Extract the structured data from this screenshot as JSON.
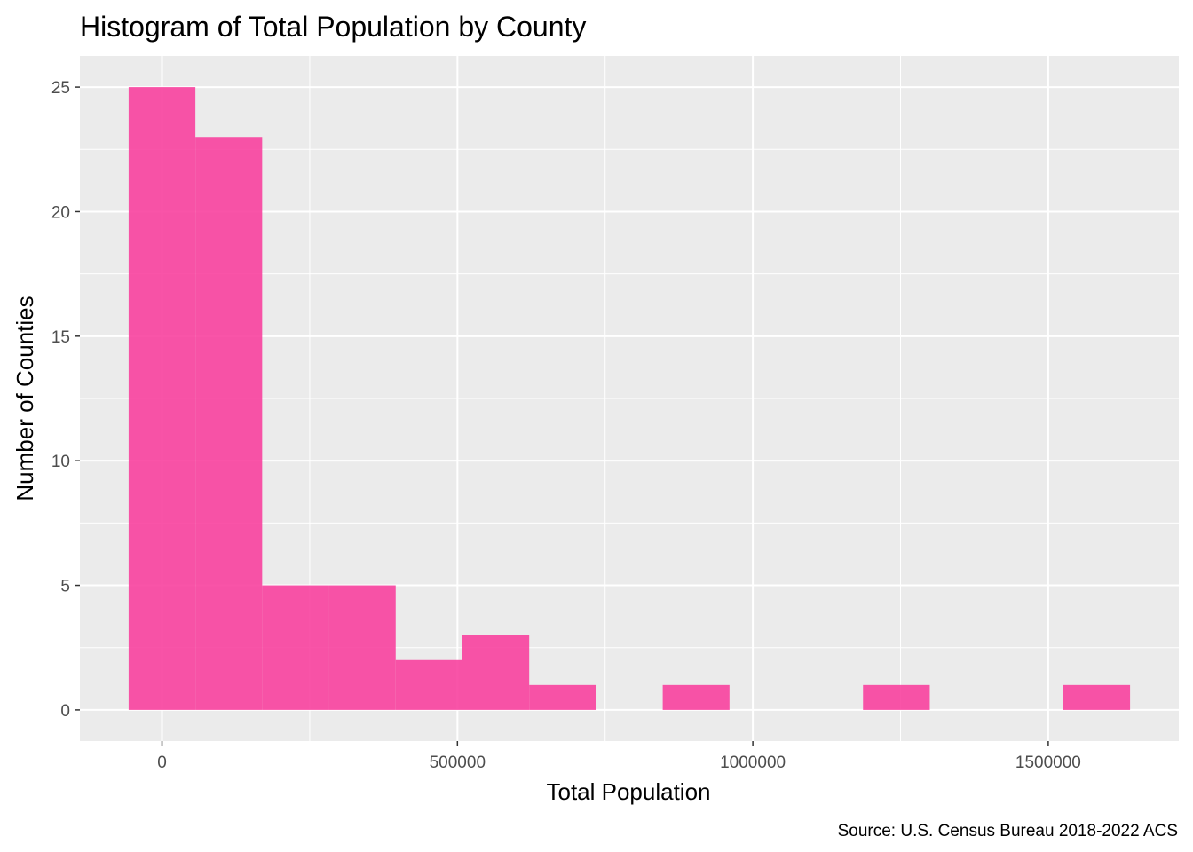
{
  "chart_data": {
    "type": "bar",
    "title": "Histogram of Total Population by County",
    "xlabel": "Total Population",
    "ylabel": "Number of Counties",
    "caption": "Source: U.S. Census Bureau 2018-2022 ACS",
    "bin_width": 113000,
    "bins": [
      {
        "x0": -56500,
        "x1": 56500,
        "count": 25
      },
      {
        "x0": 56500,
        "x1": 169500,
        "count": 23
      },
      {
        "x0": 169500,
        "x1": 282500,
        "count": 5
      },
      {
        "x0": 282500,
        "x1": 395500,
        "count": 5
      },
      {
        "x0": 395500,
        "x1": 508500,
        "count": 2
      },
      {
        "x0": 508500,
        "x1": 621500,
        "count": 3
      },
      {
        "x0": 621500,
        "x1": 734500,
        "count": 1
      },
      {
        "x0": 734500,
        "x1": 847500,
        "count": 0
      },
      {
        "x0": 847500,
        "x1": 960500,
        "count": 1
      },
      {
        "x0": 960500,
        "x1": 1073500,
        "count": 0
      },
      {
        "x0": 1073500,
        "x1": 1186500,
        "count": 0
      },
      {
        "x0": 1186500,
        "x1": 1299500,
        "count": 1
      },
      {
        "x0": 1299500,
        "x1": 1412500,
        "count": 0
      },
      {
        "x0": 1412500,
        "x1": 1525500,
        "count": 0
      },
      {
        "x0": 1525500,
        "x1": 1638500,
        "count": 1
      }
    ],
    "xlim": [
      -139000,
      1721000
    ],
    "ylim": [
      -1.25,
      26.25
    ],
    "x_ticks": [
      0,
      500000,
      1000000,
      1500000
    ],
    "x_tick_labels": [
      "0",
      "500000",
      "1000000",
      "1500000"
    ],
    "y_ticks": [
      0,
      5,
      10,
      15,
      20,
      25
    ],
    "y_tick_labels": [
      "0",
      "5",
      "10",
      "15",
      "20",
      "25"
    ],
    "bar_color": "#f8419e",
    "panel_background": "#ebebeb",
    "grid_color": "#ffffff",
    "grid": true,
    "legend": "none"
  }
}
